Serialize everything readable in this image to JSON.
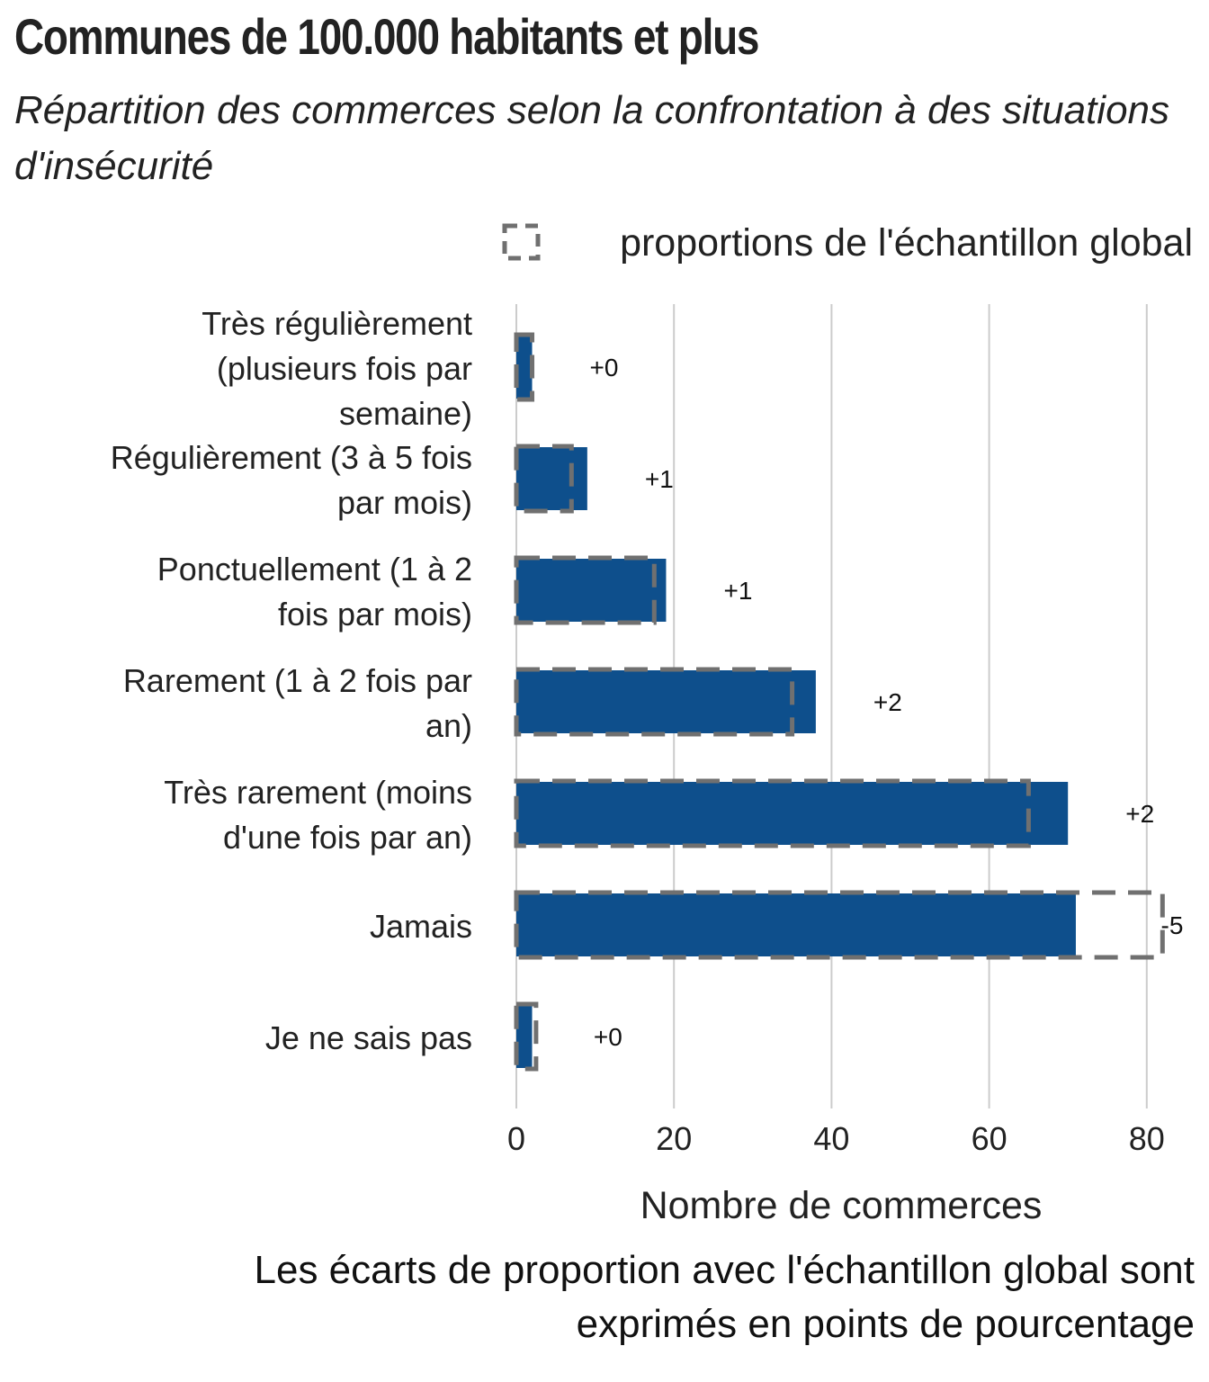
{
  "title": "Communes de 100.000 habitants et plus",
  "subtitle": "Répartition des commerces selon la confrontation à des situations d'insécurité",
  "caption_lines": [
    "Les écarts de proportion avec l'échantillon global sont",
    "exprimés en points de pourcentage"
  ],
  "colors": {
    "bar": "#0e4f8c",
    "reference_outline": "#707070",
    "grid": "#cccccc",
    "text": "#222222"
  },
  "chart_data": {
    "type": "bar",
    "orientation": "horizontal",
    "categories": [
      "Très régulièrement (plusieurs fois par semaine)",
      "Régulièrement (3 à 5 fois par mois)",
      "Ponctuellement (1 à 2 fois par mois)",
      "Rarement (1 à 2 fois par an)",
      "Très rarement (moins d'une fois par an)",
      "Jamais",
      "Je ne sais pas"
    ],
    "category_label_lines": [
      [
        "Très régulièrement",
        "(plusieurs fois par",
        "semaine)"
      ],
      [
        "Régulièrement (3 à 5 fois",
        "par mois)"
      ],
      [
        "Ponctuellement (1 à 2",
        "fois par mois)"
      ],
      [
        "Rarement (1 à 2 fois par",
        "an)"
      ],
      [
        "Très rarement (moins",
        "d'une fois par an)"
      ],
      [
        "Jamais"
      ],
      [
        "Je ne sais pas"
      ]
    ],
    "values": [
      2,
      9,
      19,
      38,
      70,
      71,
      2
    ],
    "reference_values": [
      2,
      7,
      17.5,
      35,
      65,
      82,
      2.5
    ],
    "differences": [
      "+0",
      "+1",
      "+1",
      "+2",
      "+2",
      "-5",
      "+0"
    ],
    "legend": "proportions de l'échantillon global",
    "legend_position": "top-right",
    "xlabel": "Nombre de commerces",
    "ylabel": "",
    "xlim": [
      0,
      80
    ],
    "xticks": [
      0,
      20,
      40,
      60,
      80
    ],
    "grid": "vertical"
  }
}
